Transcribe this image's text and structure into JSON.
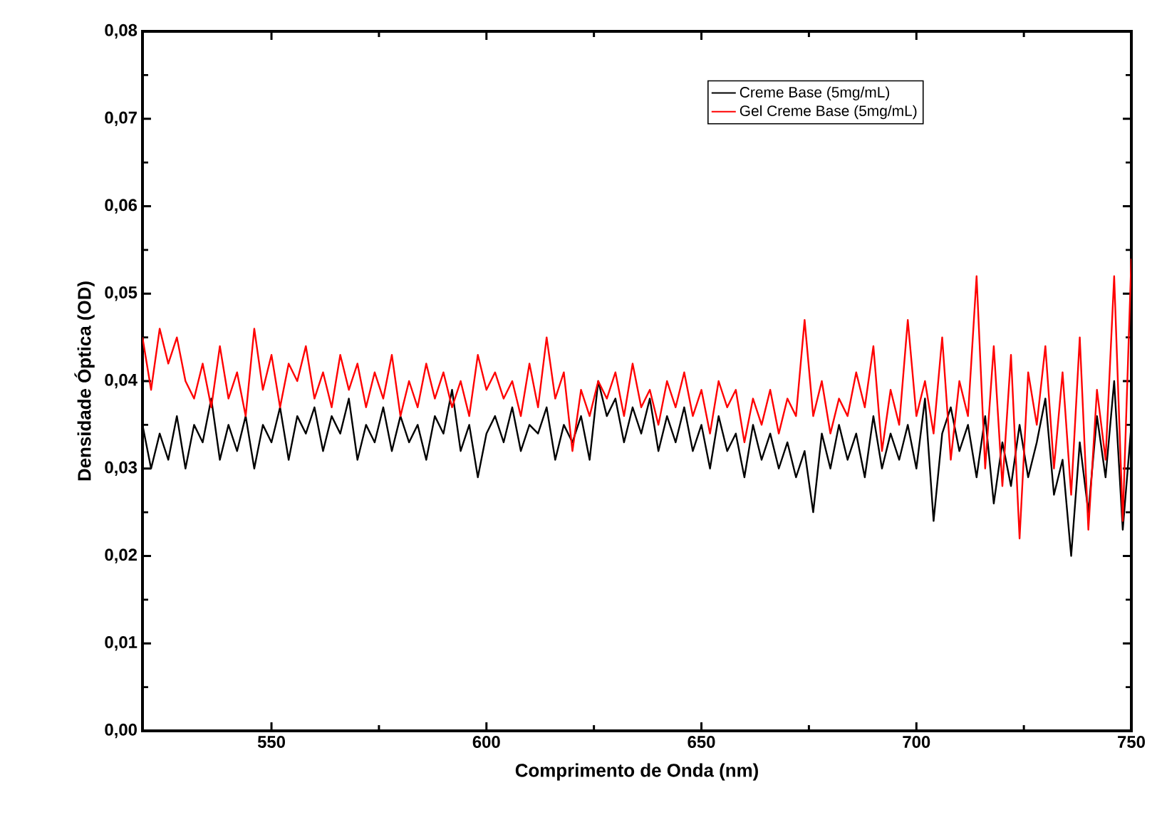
{
  "chart_data": {
    "type": "line",
    "xlabel": "Comprimento de Onda (nm)",
    "ylabel": "Densidade Óptica (OD)",
    "x": [
      520,
      522,
      524,
      526,
      528,
      530,
      532,
      534,
      536,
      538,
      540,
      542,
      544,
      546,
      548,
      550,
      552,
      554,
      556,
      558,
      560,
      562,
      564,
      566,
      568,
      570,
      572,
      574,
      576,
      578,
      580,
      582,
      584,
      586,
      588,
      590,
      592,
      594,
      596,
      598,
      600,
      602,
      604,
      606,
      608,
      610,
      612,
      614,
      616,
      618,
      620,
      622,
      624,
      626,
      628,
      630,
      632,
      634,
      636,
      638,
      640,
      642,
      644,
      646,
      648,
      650,
      652,
      654,
      656,
      658,
      660,
      662,
      664,
      666,
      668,
      670,
      672,
      674,
      676,
      678,
      680,
      682,
      684,
      686,
      688,
      690,
      692,
      694,
      696,
      698,
      700,
      702,
      704,
      706,
      708,
      710,
      712,
      714,
      716,
      718,
      720,
      722,
      724,
      726,
      728,
      730,
      732,
      734,
      736,
      738,
      740,
      742,
      744,
      746,
      748,
      750
    ],
    "series": [
      {
        "name": "Creme Base (5mg/mL)",
        "color": "#000000",
        "values": [
          0.035,
          0.03,
          0.034,
          0.031,
          0.036,
          0.03,
          0.035,
          0.033,
          0.038,
          0.031,
          0.035,
          0.032,
          0.036,
          0.03,
          0.035,
          0.033,
          0.037,
          0.031,
          0.036,
          0.034,
          0.037,
          0.032,
          0.036,
          0.034,
          0.038,
          0.031,
          0.035,
          0.033,
          0.037,
          0.032,
          0.036,
          0.033,
          0.035,
          0.031,
          0.036,
          0.034,
          0.039,
          0.032,
          0.035,
          0.029,
          0.034,
          0.036,
          0.033,
          0.037,
          0.032,
          0.035,
          0.034,
          0.037,
          0.031,
          0.035,
          0.033,
          0.036,
          0.031,
          0.04,
          0.036,
          0.038,
          0.033,
          0.037,
          0.034,
          0.038,
          0.032,
          0.036,
          0.033,
          0.037,
          0.032,
          0.035,
          0.03,
          0.036,
          0.032,
          0.034,
          0.029,
          0.035,
          0.031,
          0.034,
          0.03,
          0.033,
          0.029,
          0.032,
          0.025,
          0.034,
          0.03,
          0.035,
          0.031,
          0.034,
          0.029,
          0.036,
          0.03,
          0.034,
          0.031,
          0.035,
          0.03,
          0.038,
          0.024,
          0.034,
          0.037,
          0.032,
          0.035,
          0.029,
          0.036,
          0.026,
          0.033,
          0.028,
          0.035,
          0.029,
          0.033,
          0.038,
          0.027,
          0.031,
          0.02,
          0.033,
          0.025,
          0.036,
          0.029,
          0.04,
          0.023,
          0.035
        ]
      },
      {
        "name": "Gel Creme Base (5mg/mL)",
        "color": "#ff0000",
        "values": [
          0.045,
          0.039,
          0.046,
          0.042,
          0.045,
          0.04,
          0.038,
          0.042,
          0.037,
          0.044,
          0.038,
          0.041,
          0.036,
          0.046,
          0.039,
          0.043,
          0.037,
          0.042,
          0.04,
          0.044,
          0.038,
          0.041,
          0.037,
          0.043,
          0.039,
          0.042,
          0.037,
          0.041,
          0.038,
          0.043,
          0.036,
          0.04,
          0.037,
          0.042,
          0.038,
          0.041,
          0.037,
          0.04,
          0.036,
          0.043,
          0.039,
          0.041,
          0.038,
          0.04,
          0.036,
          0.042,
          0.037,
          0.045,
          0.038,
          0.041,
          0.032,
          0.039,
          0.036,
          0.04,
          0.038,
          0.041,
          0.036,
          0.042,
          0.037,
          0.039,
          0.035,
          0.04,
          0.037,
          0.041,
          0.036,
          0.039,
          0.034,
          0.04,
          0.037,
          0.039,
          0.033,
          0.038,
          0.035,
          0.039,
          0.034,
          0.038,
          0.036,
          0.047,
          0.036,
          0.04,
          0.034,
          0.038,
          0.036,
          0.041,
          0.037,
          0.044,
          0.032,
          0.039,
          0.035,
          0.047,
          0.036,
          0.04,
          0.034,
          0.045,
          0.031,
          0.04,
          0.036,
          0.052,
          0.03,
          0.044,
          0.028,
          0.043,
          0.022,
          0.041,
          0.035,
          0.044,
          0.03,
          0.041,
          0.027,
          0.045,
          0.023,
          0.039,
          0.031,
          0.052,
          0.024,
          0.054
        ]
      }
    ],
    "xlim": [
      520,
      750
    ],
    "xticks": [
      550,
      600,
      650,
      700,
      750
    ],
    "ylim": [
      0,
      0.08
    ],
    "yticks": [
      {
        "value": 0,
        "label": "0,00"
      },
      {
        "value": 0.01,
        "label": "0,01"
      },
      {
        "value": 0.02,
        "label": "0,02"
      },
      {
        "value": 0.03,
        "label": "0,03"
      },
      {
        "value": 0.04,
        "label": "0,04"
      },
      {
        "value": 0.05,
        "label": "0,05"
      },
      {
        "value": 0.06,
        "label": "0,06"
      },
      {
        "value": 0.07,
        "label": "0,07"
      },
      {
        "value": 0.08,
        "label": "0,08"
      }
    ],
    "legend": "top right"
  }
}
